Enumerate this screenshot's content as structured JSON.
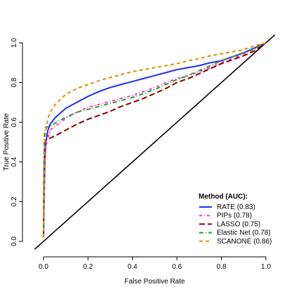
{
  "chart_data": {
    "type": "line",
    "title": "",
    "xlabel": "False Positive Rate",
    "ylabel": "True Positive Rate",
    "xlim": [
      0.0,
      1.0
    ],
    "ylim": [
      0.0,
      1.0
    ],
    "xticks": [
      "0.0",
      "0.2",
      "0.4",
      "0.6",
      "0.8",
      "1.0"
    ],
    "yticks": [
      "0.0",
      "0.2",
      "0.4",
      "0.6",
      "0.8",
      "1.0"
    ],
    "grid": false,
    "legend": {
      "title": "Method (AUC):",
      "placement": "bottom-right"
    },
    "reference_line": {
      "x": [
        0.0,
        1.0
      ],
      "y": [
        0.0,
        1.0
      ],
      "color": "#000000"
    },
    "series": [
      {
        "name": "RATE (0.83)",
        "color": "#1f2bff",
        "dash": "solid",
        "x": [
          0.0,
          0.003,
          0.006,
          0.01,
          0.015,
          0.02,
          0.03,
          0.05,
          0.08,
          0.1,
          0.15,
          0.2,
          0.25,
          0.3,
          0.35,
          0.4,
          0.45,
          0.5,
          0.55,
          0.6,
          0.65,
          0.7,
          0.75,
          0.8,
          0.85,
          0.9,
          0.95,
          1.0
        ],
        "y": [
          0.02,
          0.25,
          0.4,
          0.5,
          0.53,
          0.56,
          0.59,
          0.62,
          0.65,
          0.67,
          0.7,
          0.73,
          0.755,
          0.775,
          0.79,
          0.805,
          0.82,
          0.835,
          0.85,
          0.865,
          0.875,
          0.885,
          0.9,
          0.91,
          0.93,
          0.95,
          0.975,
          1.0
        ]
      },
      {
        "name": "PIPs (0.78)",
        "color": "#ff2bdc",
        "dash": "4,3,1,3",
        "x": [
          0.0,
          0.003,
          0.006,
          0.01,
          0.015,
          0.02,
          0.03,
          0.05,
          0.08,
          0.1,
          0.15,
          0.2,
          0.25,
          0.3,
          0.35,
          0.4,
          0.45,
          0.5,
          0.55,
          0.6,
          0.65,
          0.7,
          0.75,
          0.8,
          0.85,
          0.9,
          0.95,
          1.0
        ],
        "y": [
          0.02,
          0.22,
          0.38,
          0.47,
          0.5,
          0.52,
          0.56,
          0.58,
          0.6,
          0.62,
          0.65,
          0.675,
          0.69,
          0.705,
          0.72,
          0.735,
          0.755,
          0.775,
          0.8,
          0.82,
          0.835,
          0.855,
          0.875,
          0.9,
          0.92,
          0.945,
          0.97,
          1.0
        ]
      },
      {
        "name": "LASSO (0.75)",
        "color": "#8b0000",
        "dash": "8,4",
        "x": [
          0.0,
          0.002,
          0.004,
          0.006,
          0.01,
          0.02,
          0.05,
          0.1,
          0.15,
          0.2,
          0.25,
          0.3,
          0.35,
          0.4,
          0.45,
          0.5,
          0.55,
          0.6,
          0.65,
          0.7,
          0.75,
          0.8,
          0.85,
          0.9,
          0.95,
          1.0
        ],
        "y": [
          0.02,
          0.3,
          0.45,
          0.5,
          0.51,
          0.515,
          0.53,
          0.56,
          0.59,
          0.615,
          0.635,
          0.655,
          0.68,
          0.7,
          0.72,
          0.745,
          0.77,
          0.8,
          0.82,
          0.845,
          0.87,
          0.895,
          0.915,
          0.935,
          0.96,
          1.0
        ]
      },
      {
        "name": "Elastic Net (0.78)",
        "color": "#22a022",
        "dash": "6,3,1,3",
        "x": [
          0.0,
          0.002,
          0.004,
          0.006,
          0.01,
          0.03,
          0.06,
          0.1,
          0.15,
          0.2,
          0.25,
          0.3,
          0.35,
          0.4,
          0.45,
          0.5,
          0.55,
          0.6,
          0.65,
          0.7,
          0.75,
          0.8,
          0.85,
          0.9,
          0.95,
          1.0
        ],
        "y": [
          0.02,
          0.4,
          0.52,
          0.57,
          0.575,
          0.58,
          0.6,
          0.625,
          0.65,
          0.665,
          0.68,
          0.695,
          0.71,
          0.725,
          0.745,
          0.765,
          0.79,
          0.815,
          0.835,
          0.86,
          0.885,
          0.91,
          0.93,
          0.95,
          0.97,
          1.0
        ]
      },
      {
        "name": "SCANONE (0.86)",
        "color": "#dd9000",
        "dash": "5,4",
        "x": [
          0.0,
          0.003,
          0.006,
          0.01,
          0.015,
          0.02,
          0.03,
          0.05,
          0.08,
          0.1,
          0.15,
          0.2,
          0.25,
          0.3,
          0.35,
          0.4,
          0.45,
          0.5,
          0.55,
          0.6,
          0.65,
          0.7,
          0.75,
          0.8,
          0.85,
          0.9,
          0.95,
          1.0
        ],
        "y": [
          0.02,
          0.3,
          0.5,
          0.55,
          0.59,
          0.62,
          0.65,
          0.685,
          0.72,
          0.74,
          0.77,
          0.79,
          0.81,
          0.825,
          0.84,
          0.855,
          0.865,
          0.875,
          0.885,
          0.895,
          0.91,
          0.92,
          0.935,
          0.945,
          0.955,
          0.965,
          0.985,
          1.0
        ]
      }
    ]
  }
}
